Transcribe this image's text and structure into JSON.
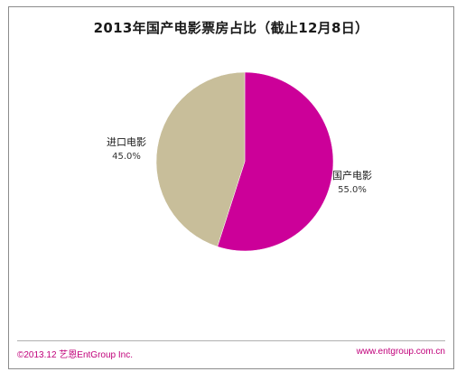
{
  "chart_data": {
    "type": "pie",
    "title": "2013年国产电影票房占比（截止12月8日）",
    "slices": [
      {
        "name": "国产电影",
        "value": 55.0,
        "label": "55.0%",
        "color": "#cc0099"
      },
      {
        "name": "进口电影",
        "value": 45.0,
        "label": "45.0%",
        "color": "#c8be9a"
      }
    ],
    "legend": "none"
  },
  "footer": {
    "copyright": "©2013.12  艺恩EntGroup Inc.",
    "url": "www.entgroup.com.cn"
  }
}
